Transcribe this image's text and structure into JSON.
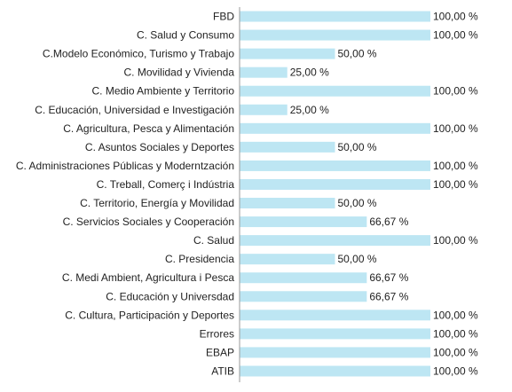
{
  "colors": {
    "bar": "#bde6f3",
    "text": "#222222",
    "axis": "#9a9a9a",
    "background": "#ffffff"
  },
  "chart_data": {
    "type": "bar",
    "orientation": "horizontal",
    "title": "",
    "xlabel": "",
    "ylabel": "",
    "xlim": [
      0,
      100
    ],
    "grid": false,
    "legend": "none",
    "categories": [
      "FBD",
      "C. Salud y Consumo",
      "C.Modelo Económico, Turismo y Trabajo",
      "C. Movilidad y Vivienda",
      "C. Medio Ambiente y Territorio",
      "C. Educación, Universidad e Investigación",
      "C. Agricultura, Pesca y Alimentación",
      "C. Asuntos Sociales y Deportes",
      "C. Administraciones Públicas y Moderntzación",
      "C. Treball, Comerç i Indústria",
      "C. Territorio, Energía y Movilidad",
      "C. Servicios Sociales y Cooperación",
      "C. Salud",
      "C. Presidencia",
      "C. Medi Ambient, Agricultura i Pesca",
      "C. Educación y Universdad",
      "C. Cultura, Participación y Deportes",
      "Errores",
      "EBAP",
      "ATIB"
    ],
    "values": [
      100,
      100,
      50,
      25,
      100,
      25,
      100,
      50,
      100,
      100,
      50,
      66.67,
      100,
      50,
      66.67,
      66.67,
      100,
      100,
      100,
      100
    ],
    "value_labels": [
      "100,00 %",
      "100,00 %",
      "50,00 %",
      "25,00 %",
      "100,00 %",
      "25,00 %",
      "100,00 %",
      "50,00 %",
      "100,00 %",
      "100,00 %",
      "50,00 %",
      "66,67 %",
      "100,00 %",
      "50,00 %",
      "66,67 %",
      "66,67 %",
      "100,00 %",
      "100,00 %",
      "100,00 %",
      "100,00 %"
    ]
  }
}
